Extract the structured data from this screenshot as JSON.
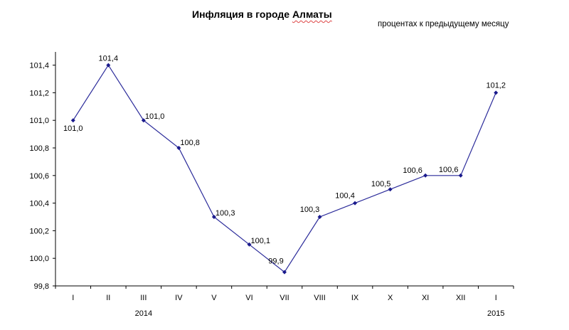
{
  "title_main": "Инфляция в городе",
  "title_city": "Алматы",
  "subtitle": "процентах к предыдущему месяцу",
  "chart_data": {
    "type": "line",
    "title": "Инфляция в городе Алматы",
    "subtitle": "процентах к предыдущему месяцу",
    "xlabel": "",
    "ylabel": "",
    "categories": [
      "I",
      "II",
      "III",
      "IV",
      "V",
      "VI",
      "VII",
      "VIII",
      "IX",
      "X",
      "XI",
      "XII",
      "I"
    ],
    "year_labels": [
      {
        "label": "2014",
        "under_index": 2
      },
      {
        "label": "2015",
        "under_index": 12
      }
    ],
    "series": [
      {
        "name": "Инфляция",
        "values": [
          101.0,
          101.4,
          101.0,
          100.8,
          100.3,
          100.1,
          99.9,
          100.3,
          100.4,
          100.5,
          100.6,
          100.6,
          101.2
        ],
        "labels": [
          "101,0",
          "101,4",
          "101,0",
          "100,8",
          "100,3",
          "100,1",
          "99,9",
          "100,3",
          "100,4",
          "100,5",
          "100,6",
          "100,6",
          "101,2"
        ],
        "color": "#2b2b9a"
      }
    ],
    "ylim": [
      99.8,
      101.5
    ],
    "yticks": [
      99.8,
      100.0,
      100.2,
      100.4,
      100.6,
      100.8,
      101.0,
      101.2,
      101.4
    ],
    "ytick_labels": [
      "99,8",
      "100,0",
      "100,2",
      "100,4",
      "100,6",
      "100,8",
      "101,0",
      "101,2",
      "101,4"
    ],
    "grid": false,
    "legend": "none"
  }
}
